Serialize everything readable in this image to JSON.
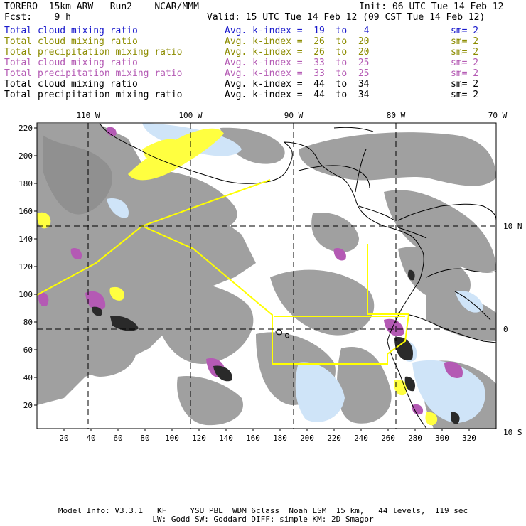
{
  "header": {
    "title_left": "TORERO  15km ARW   Run2    NCAR/MMM",
    "init": "Init: 06 UTC Tue 14 Feb 12",
    "fcst": "Fcst:    9 h",
    "valid": "Valid: 15 UTC Tue 14 Feb 12 (09 CST Tue 14 Feb 12)"
  },
  "fields": [
    {
      "name": "Total cloud mixing ratio",
      "kindex": "Avg. k-index =  19  to   4",
      "sm": "sm= 2",
      "color": "#1a1acc"
    },
    {
      "name": "Total cloud mixing ratio",
      "kindex": "Avg. k-index =  26  to  20",
      "sm": "sm= 2",
      "color": "#8c8c00"
    },
    {
      "name": "Total precipitation mixing ratio",
      "kindex": "Avg. k-index =  26  to  20",
      "sm": "sm= 2",
      "color": "#8c8c00"
    },
    {
      "name": "Total cloud mixing ratio",
      "kindex": "Avg. k-index =  33  to  25",
      "sm": "sm= 2",
      "color": "#b45ab4"
    },
    {
      "name": "Total precipitation mixing ratio",
      "kindex": "Avg. k-index =  33  to  25",
      "sm": "sm= 2",
      "color": "#b45ab4"
    },
    {
      "name": "Total cloud mixing ratio",
      "kindex": "Avg. k-index =  44  to  34",
      "sm": "sm= 2",
      "color": "#000000"
    },
    {
      "name": "Total precipitation mixing ratio",
      "kindex": "Avg. k-index =  44  to  34",
      "sm": "sm= 2",
      "color": "#000000"
    }
  ],
  "map": {
    "lon_labels": [
      "110 W",
      "100 W",
      "90 W",
      "80 W",
      "70 W"
    ],
    "lat_labels": [
      "10 N",
      "0",
      "10 S"
    ],
    "x_ticks": [
      "20",
      "40",
      "60",
      "80",
      "100",
      "120",
      "140",
      "160",
      "180",
      "200",
      "220",
      "240",
      "260",
      "280",
      "300",
      "320"
    ],
    "y_ticks": [
      "220",
      "200",
      "180",
      "160",
      "140",
      "120",
      "100",
      "80",
      "60",
      "40",
      "20"
    ],
    "colors": {
      "cloud": "#a0a0a0",
      "dense_cloud": "#2a2a2a",
      "precip_low": "#ffff40",
      "precip_mid": "#b45ab4",
      "precip_light": "#cfe4f8",
      "precip_blue": "#2a50d0",
      "domain_outline": "#ffff00",
      "coast": "#000000"
    }
  },
  "footer": {
    "line1": "Model Info: V3.3.1   KF     YSU PBL  WDM 6class  Noah LSM  15 km,   44 levels,  119 sec",
    "line2": "LW: Godd SW: Goddard DIFF: simple KM: 2D Smagor"
  }
}
